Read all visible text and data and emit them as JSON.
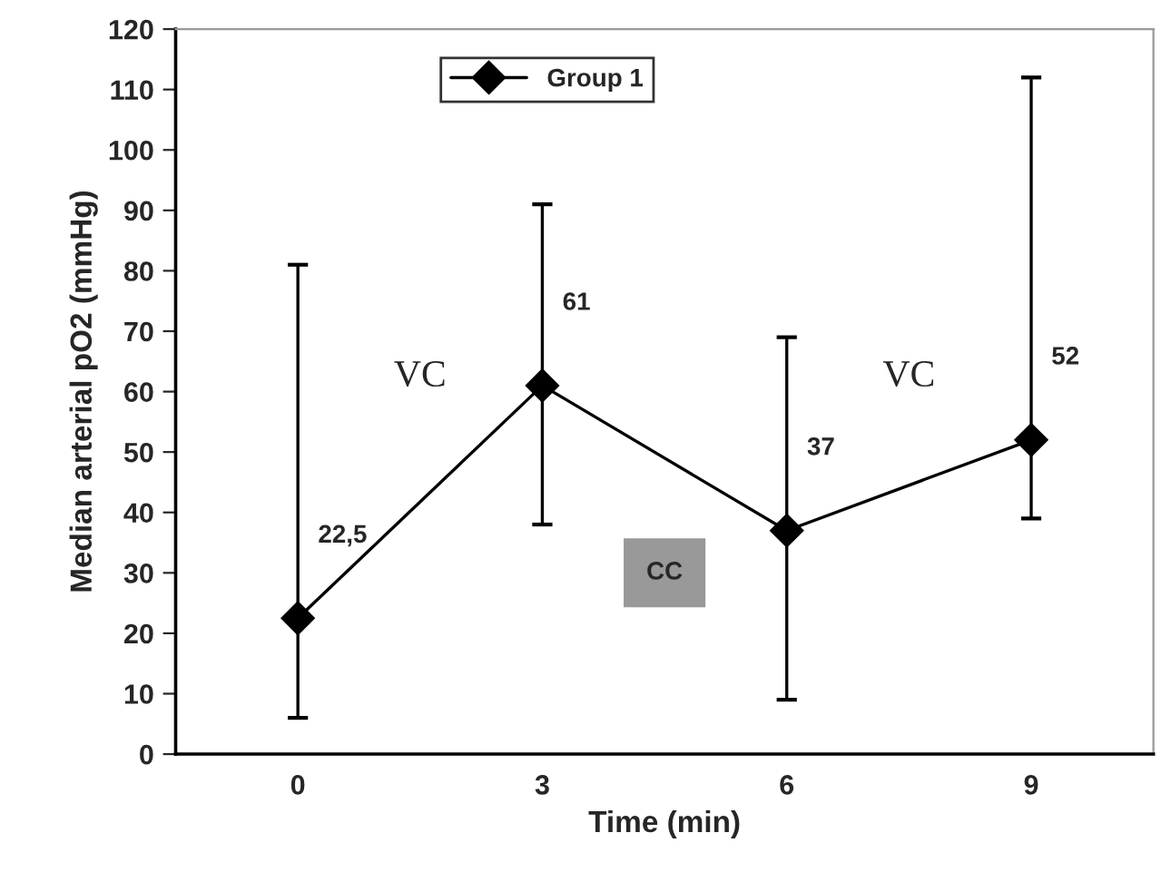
{
  "chart_data": {
    "type": "line",
    "xlabel": "Time (min)",
    "ylabel": "Median arterial pO2 (mmHg)",
    "categories": [
      "0",
      "3",
      "6",
      "9"
    ],
    "series": [
      {
        "name": "Group 1",
        "color": "#000000",
        "values": [
          22.5,
          61,
          37,
          52
        ],
        "errors": [
          [
            6,
            81
          ],
          [
            38,
            91
          ],
          [
            9,
            69
          ],
          [
            39,
            112
          ]
        ],
        "value_labels": [
          "22,5",
          "61",
          "37",
          "52"
        ]
      }
    ],
    "ylim": [
      0,
      120
    ],
    "yticks": [
      0,
      10,
      20,
      30,
      40,
      50,
      60,
      70,
      80,
      90,
      100,
      110,
      120
    ],
    "annotations": [
      "VC",
      "CC",
      "VC"
    ],
    "marker": "diamond",
    "line_style": "solid",
    "grid": false,
    "legend": "top"
  }
}
